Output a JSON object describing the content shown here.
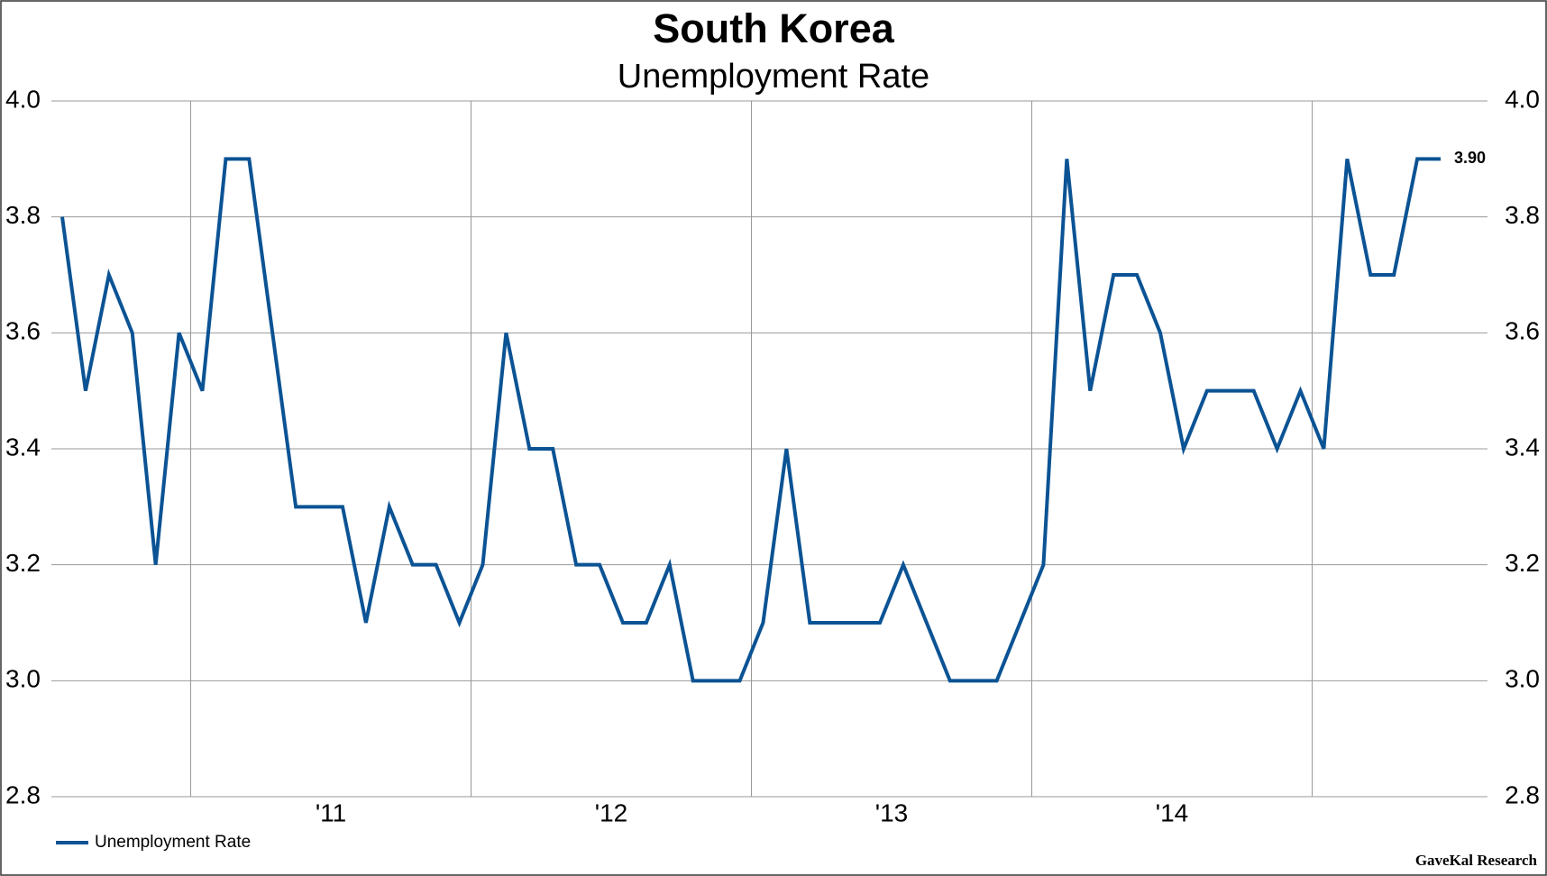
{
  "chart_data": {
    "type": "line",
    "title": "South Korea",
    "subtitle": "Unemployment Rate",
    "categories": [
      null,
      null,
      null,
      null,
      null,
      null,
      null,
      null,
      null,
      null,
      null,
      "'11",
      null,
      null,
      null,
      null,
      null,
      null,
      null,
      null,
      null,
      null,
      null,
      "'12",
      null,
      null,
      null,
      null,
      null,
      null,
      null,
      null,
      null,
      null,
      null,
      "'13",
      null,
      null,
      null,
      null,
      null,
      null,
      null,
      null,
      null,
      null,
      null,
      "'14",
      null,
      null,
      null,
      null,
      null,
      null,
      null,
      null,
      null,
      null,
      null,
      null
    ],
    "series": [
      {
        "name": "Unemployment Rate",
        "color": "#0b5394",
        "values": [
          3.8,
          3.5,
          3.7,
          3.6,
          3.2,
          3.6,
          3.5,
          3.9,
          3.9,
          3.6,
          3.3,
          3.3,
          3.3,
          3.1,
          3.3,
          3.2,
          3.2,
          3.1,
          3.2,
          3.6,
          3.4,
          3.4,
          3.2,
          3.2,
          3.1,
          3.1,
          3.2,
          3.0,
          3.0,
          3.0,
          3.1,
          3.4,
          3.1,
          3.1,
          3.1,
          3.1,
          3.2,
          3.1,
          3.0,
          3.0,
          3.0,
          3.1,
          3.2,
          3.9,
          3.5,
          3.7,
          3.7,
          3.6,
          3.4,
          3.5,
          3.5,
          3.5,
          3.4,
          3.5,
          3.4,
          3.9,
          3.7,
          3.7,
          3.9,
          3.9
        ],
        "value_labels": [
          null,
          null,
          null,
          null,
          null,
          null,
          null,
          null,
          null,
          null,
          null,
          null,
          null,
          null,
          null,
          null,
          null,
          null,
          null,
          null,
          null,
          null,
          null,
          null,
          null,
          null,
          null,
          null,
          null,
          null,
          null,
          null,
          null,
          null,
          null,
          null,
          null,
          null,
          null,
          null,
          null,
          null,
          null,
          null,
          null,
          null,
          null,
          null,
          null,
          null,
          null,
          null,
          null,
          null,
          null,
          null,
          null,
          null,
          null,
          "3.90"
        ]
      }
    ],
    "ylim": [
      2.8,
      4.0
    ],
    "yticks": [
      {
        "value": 2.8,
        "label": "2.8"
      },
      {
        "value": 3,
        "label": "3.0"
      },
      {
        "value": 3.2,
        "label": "3.2"
      },
      {
        "value": 3.4,
        "label": "3.4"
      },
      {
        "value": 3.6,
        "label": "3.6"
      },
      {
        "value": 3.8,
        "label": "3.8"
      },
      {
        "value": 4,
        "label": "4.0"
      }
    ],
    "grid": true,
    "legend": "bottom-left",
    "source": "GaveKal Research"
  }
}
